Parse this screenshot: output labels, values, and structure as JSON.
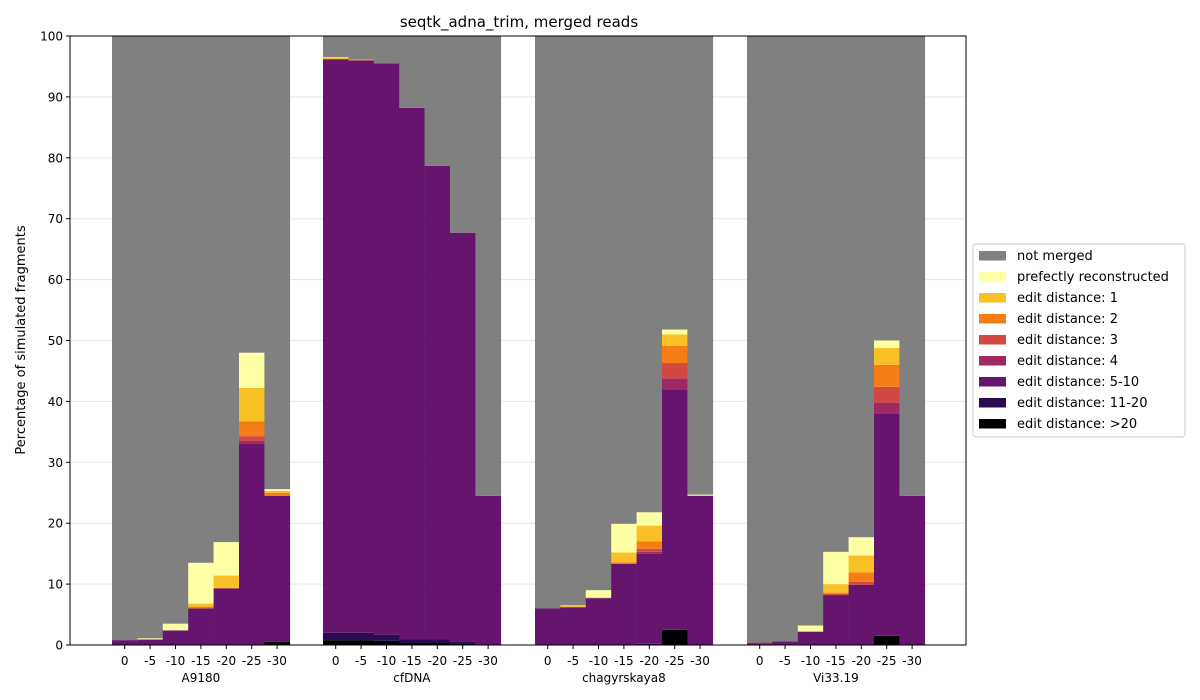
{
  "chart_data": {
    "type": "bar",
    "stacked": true,
    "title": "seqtk_adna_trim, merged reads",
    "xlabel": "",
    "ylabel": "Percentage of simulated fragments",
    "ylim": [
      0,
      100
    ],
    "yticks": [
      0,
      10,
      20,
      30,
      40,
      50,
      60,
      70,
      80,
      90,
      100
    ],
    "grid": true,
    "legend_position": "right",
    "bar_labels": [
      "0",
      "-5",
      "-10",
      "-15",
      "-20",
      "-25",
      "-30"
    ],
    "series": [
      {
        "name": "edit distance: >20",
        "color": "#000004"
      },
      {
        "name": "edit distance: 11-20",
        "color": "#280b53"
      },
      {
        "name": "edit distance: 5-10",
        "color": "#65156e"
      },
      {
        "name": "edit distance: 4",
        "color": "#9f2a63"
      },
      {
        "name": "edit distance: 3",
        "color": "#d44842"
      },
      {
        "name": "edit distance: 2",
        "color": "#f57d15"
      },
      {
        "name": "edit distance: 1",
        "color": "#fac127"
      },
      {
        "name": "prefectly reconstructed",
        "color": "#fcffa4"
      },
      {
        "name": "not merged",
        "color": "#808080"
      }
    ],
    "legend_order": [
      "not merged",
      "prefectly reconstructed",
      "edit distance: 1",
      "edit distance: 2",
      "edit distance: 3",
      "edit distance: 4",
      "edit distance: 5-10",
      "edit distance: 11-20",
      "edit distance: >20"
    ],
    "groups": [
      {
        "name": "A9180",
        "bars": [
          [
            0,
            0,
            0.8,
            0,
            0,
            0,
            0,
            0,
            99.2
          ],
          [
            0,
            0,
            0.9,
            0,
            0,
            0,
            0,
            0.2,
            98.9
          ],
          [
            0,
            0,
            2.4,
            0,
            0,
            0,
            0,
            1.1,
            96.5
          ],
          [
            0,
            0,
            6.0,
            0,
            0,
            0.3,
            0.5,
            6.7,
            86.5
          ],
          [
            0,
            0,
            9.3,
            0,
            0,
            0.1,
            2.0,
            5.5,
            83.1
          ],
          [
            0,
            0,
            33.0,
            0.5,
            0.8,
            2.4,
            5.5,
            5.8,
            52.0
          ],
          [
            0.5,
            0,
            24.0,
            0,
            0,
            0.5,
            0.3,
            0.3,
            74.4
          ]
        ]
      },
      {
        "name": "cfDNA",
        "bars": [
          [
            0.8,
            1.2,
            94.2,
            0,
            0,
            0,
            0.2,
            0.1,
            3.5
          ],
          [
            0.8,
            1.2,
            94.0,
            0,
            0,
            0.2,
            0,
            0,
            3.8
          ],
          [
            0.7,
            1.0,
            93.8,
            0,
            0,
            0,
            0,
            0,
            4.5
          ],
          [
            0.4,
            0.5,
            87.3,
            0,
            0,
            0,
            0,
            0,
            11.8
          ],
          [
            0.4,
            0.5,
            77.8,
            0,
            0,
            0,
            0,
            0,
            21.3
          ],
          [
            0.3,
            0.2,
            67.2,
            0,
            0,
            0,
            0,
            0,
            32.3
          ],
          [
            0,
            0,
            24.5,
            0,
            0,
            0,
            0,
            0,
            75.5
          ]
        ]
      },
      {
        "name": "chagyrskaya8",
        "bars": [
          [
            0,
            0,
            6.0,
            0,
            0,
            0,
            0,
            0,
            94.0
          ],
          [
            0,
            0,
            6.2,
            0,
            0,
            0.1,
            0.1,
            0.1,
            93.5
          ],
          [
            0,
            0,
            7.7,
            0,
            0,
            0,
            0.1,
            1.2,
            91.0
          ],
          [
            0,
            0,
            13.3,
            0,
            0,
            0.3,
            1.6,
            4.7,
            80.1
          ],
          [
            0,
            0.2,
            14.8,
            0.3,
            0.5,
            1.2,
            2.6,
            2.2,
            78.2
          ],
          [
            2.5,
            0,
            39.5,
            1.8,
            2.5,
            2.8,
            1.9,
            0.8,
            48.2
          ],
          [
            0,
            0,
            24.5,
            0,
            0,
            0,
            0.1,
            0.1,
            75.3
          ]
        ]
      },
      {
        "name": "Vi33.19",
        "bars": [
          [
            0,
            0,
            0.3,
            0.1,
            0,
            0,
            0,
            0,
            99.6
          ],
          [
            0,
            0,
            0.6,
            0,
            0,
            0,
            0,
            0,
            99.4
          ],
          [
            0,
            0,
            2.2,
            0,
            0,
            0,
            0,
            1.0,
            96.8
          ],
          [
            0,
            0,
            8.2,
            0,
            0.2,
            0.2,
            1.4,
            5.3,
            84.7
          ],
          [
            0,
            0,
            9.9,
            0,
            0.5,
            1.5,
            2.8,
            3.0,
            82.3
          ],
          [
            1.5,
            0,
            36.5,
            1.8,
            2.6,
            3.6,
            2.8,
            1.2,
            50.0
          ],
          [
            0,
            0,
            24.5,
            0,
            0,
            0,
            0,
            0,
            75.5
          ]
        ]
      }
    ]
  }
}
